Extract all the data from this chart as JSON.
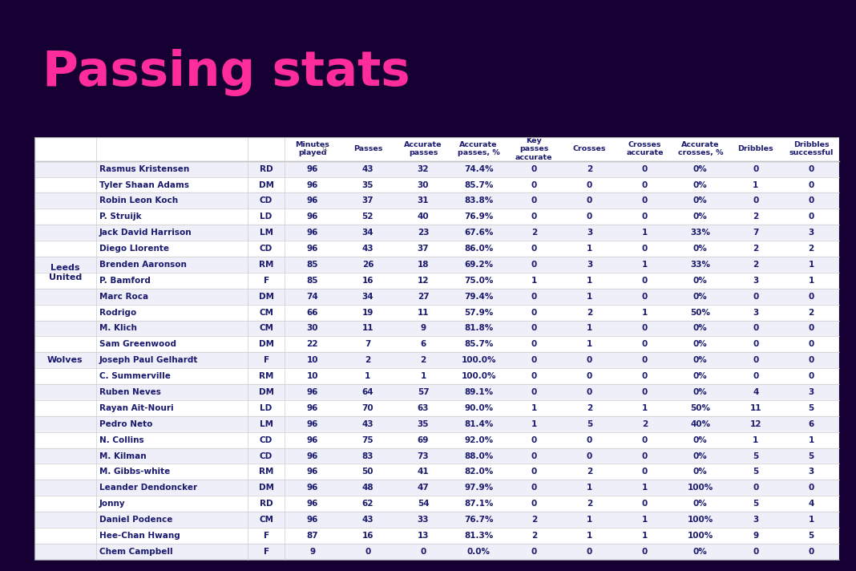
{
  "title": "Passing stats",
  "title_color": "#ff2d9b",
  "bg_color": "#160033",
  "table_bg": "#ffffff",
  "fig_width": 10.68,
  "fig_height": 7.12,
  "columns": [
    "Minutes\nplayed",
    "Passes",
    "Accurate\npasses",
    "Accurate\npasses, %",
    "Key\npasses\naccurate",
    "Crosses",
    "Crosses\naccurate",
    "Accurate\ncrosses, %",
    "Dribbles",
    "Dribbles\nsuccessful"
  ],
  "team_labels": [
    "Leeds\nUnited",
    "Wolves"
  ],
  "rows": [
    [
      "Rasmus Kristensen",
      "RD",
      "96",
      "43",
      "32",
      "74.4%",
      "0",
      "2",
      "0",
      "0%",
      "0",
      "0"
    ],
    [
      "Tyler Shaan Adams",
      "DM",
      "96",
      "35",
      "30",
      "85.7%",
      "0",
      "0",
      "0",
      "0%",
      "1",
      "0"
    ],
    [
      "Robin Leon Koch",
      "CD",
      "96",
      "37",
      "31",
      "83.8%",
      "0",
      "0",
      "0",
      "0%",
      "0",
      "0"
    ],
    [
      "P. Struijk",
      "LD",
      "96",
      "52",
      "40",
      "76.9%",
      "0",
      "0",
      "0",
      "0%",
      "2",
      "0"
    ],
    [
      "Jack David Harrison",
      "LM",
      "96",
      "34",
      "23",
      "67.6%",
      "2",
      "3",
      "1",
      "33%",
      "7",
      "3"
    ],
    [
      "Diego Llorente",
      "CD",
      "96",
      "43",
      "37",
      "86.0%",
      "0",
      "1",
      "0",
      "0%",
      "2",
      "2"
    ],
    [
      "Brenden Aaronson",
      "RM",
      "85",
      "26",
      "18",
      "69.2%",
      "0",
      "3",
      "1",
      "33%",
      "2",
      "1"
    ],
    [
      "P. Bamford",
      "F",
      "85",
      "16",
      "12",
      "75.0%",
      "1",
      "1",
      "0",
      "0%",
      "3",
      "1"
    ],
    [
      "Marc Roca",
      "DM",
      "74",
      "34",
      "27",
      "79.4%",
      "0",
      "1",
      "0",
      "0%",
      "0",
      "0"
    ],
    [
      "Rodrigo",
      "CM",
      "66",
      "19",
      "11",
      "57.9%",
      "0",
      "2",
      "1",
      "50%",
      "3",
      "2"
    ],
    [
      "M. Klich",
      "CM",
      "30",
      "11",
      "9",
      "81.8%",
      "0",
      "1",
      "0",
      "0%",
      "0",
      "0"
    ],
    [
      "Sam Greenwood",
      "DM",
      "22",
      "7",
      "6",
      "85.7%",
      "0",
      "1",
      "0",
      "0%",
      "0",
      "0"
    ],
    [
      "Joseph Paul Gelhardt",
      "F",
      "10",
      "2",
      "2",
      "100.0%",
      "0",
      "0",
      "0",
      "0%",
      "0",
      "0"
    ],
    [
      "C. Summerville",
      "RM",
      "10",
      "1",
      "1",
      "100.0%",
      "0",
      "0",
      "0",
      "0%",
      "0",
      "0"
    ],
    [
      "Ruben Neves",
      "DM",
      "96",
      "64",
      "57",
      "89.1%",
      "0",
      "0",
      "0",
      "0%",
      "4",
      "3"
    ],
    [
      "Rayan Ait-Nouri",
      "LD",
      "96",
      "70",
      "63",
      "90.0%",
      "1",
      "2",
      "1",
      "50%",
      "11",
      "5"
    ],
    [
      "Pedro Neto",
      "LM",
      "96",
      "43",
      "35",
      "81.4%",
      "1",
      "5",
      "2",
      "40%",
      "12",
      "6"
    ],
    [
      "N. Collins",
      "CD",
      "96",
      "75",
      "69",
      "92.0%",
      "0",
      "0",
      "0",
      "0%",
      "1",
      "1"
    ],
    [
      "M. Kilman",
      "CD",
      "96",
      "83",
      "73",
      "88.0%",
      "0",
      "0",
      "0",
      "0%",
      "5",
      "5"
    ],
    [
      "M. Gibbs-white",
      "RM",
      "96",
      "50",
      "41",
      "82.0%",
      "0",
      "2",
      "0",
      "0%",
      "5",
      "3"
    ],
    [
      "Leander Dendoncker",
      "DM",
      "96",
      "48",
      "47",
      "97.9%",
      "0",
      "1",
      "1",
      "100%",
      "0",
      "0"
    ],
    [
      "Jonny",
      "RD",
      "96",
      "62",
      "54",
      "87.1%",
      "0",
      "2",
      "0",
      "0%",
      "5",
      "4"
    ],
    [
      "Daniel Podence",
      "CM",
      "96",
      "43",
      "33",
      "76.7%",
      "2",
      "1",
      "1",
      "100%",
      "3",
      "1"
    ],
    [
      "Hee-Chan Hwang",
      "F",
      "87",
      "16",
      "13",
      "81.3%",
      "2",
      "1",
      "1",
      "100%",
      "9",
      "5"
    ],
    [
      "Chem Campbell",
      "F",
      "9",
      "0",
      "0",
      "0.0%",
      "0",
      "0",
      "0",
      "0%",
      "0",
      "0"
    ]
  ],
  "row_colors": [
    "#efeffa",
    "#ffffff"
  ],
  "text_color": "#1a1a6e",
  "header_text_color": "#1a1a6e",
  "line_color": "#cccccc"
}
